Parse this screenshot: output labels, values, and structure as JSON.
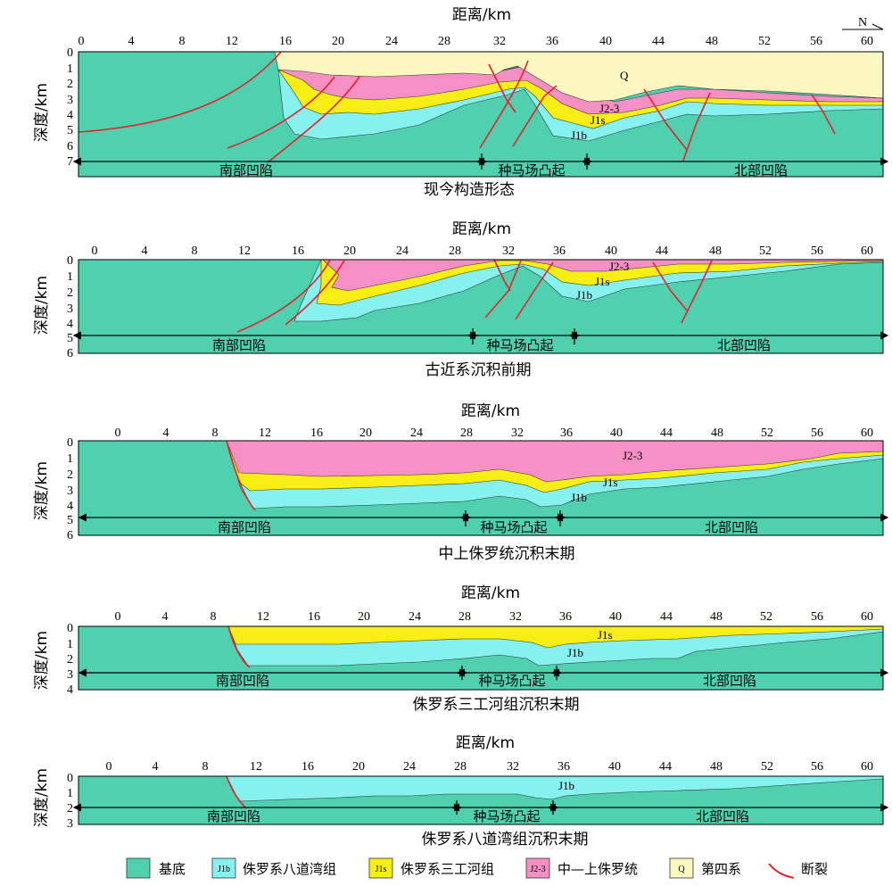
{
  "x_axis_title": "距离/km",
  "y_axis_title": "深度/km",
  "north_label": "N",
  "colors": {
    "basement": "#4fd1b0",
    "j1b": "#86f1ee",
    "j1s": "#f7ef13",
    "j23": "#f590c4",
    "q": "#fbf7c0",
    "fault": "#e8202a"
  },
  "panels": [
    {
      "title": "现今构造形态",
      "x_ticks": [
        "0",
        "4",
        "8",
        "12",
        "16",
        "20",
        "24",
        "28",
        "32",
        "36",
        "40",
        "44",
        "48",
        "52",
        "56",
        "60"
      ],
      "y_ticks": [
        "0",
        "1",
        "2",
        "3",
        "4",
        "5",
        "6",
        "7"
      ],
      "zones": [
        "南部凹陷",
        "种马场凸起",
        "北部凹陷"
      ],
      "unit_labels": [
        "Q",
        "J2-3",
        "J1s",
        "J1b"
      ]
    },
    {
      "title": "古近系沉积前期",
      "x_ticks": [
        "0",
        "4",
        "8",
        "12",
        "16",
        "20",
        "24",
        "28",
        "32",
        "36",
        "40",
        "44",
        "48",
        "52",
        "56",
        "60"
      ],
      "y_ticks": [
        "0",
        "1",
        "2",
        "3",
        "4",
        "5",
        "6"
      ],
      "zones": [
        "南部凹陷",
        "种马场凸起",
        "北部凹陷"
      ],
      "unit_labels": [
        "J2-3",
        "J1s",
        "J1b"
      ]
    },
    {
      "title": "中上侏罗统沉积末期",
      "x_ticks": [
        "0",
        "4",
        "8",
        "12",
        "16",
        "20",
        "24",
        "28",
        "32",
        "36",
        "40",
        "44",
        "48",
        "52",
        "56",
        "60"
      ],
      "y_ticks": [
        "0",
        "1",
        "2",
        "3",
        "4",
        "5",
        "6"
      ],
      "zones": [
        "南部凹陷",
        "种马场凸起",
        "北部凹陷"
      ],
      "unit_labels": [
        "J2-3",
        "J1s",
        "J1b"
      ]
    },
    {
      "title": "侏罗系三工河组沉积末期",
      "x_ticks": [
        "0",
        "4",
        "8",
        "12",
        "16",
        "20",
        "24",
        "28",
        "32",
        "36",
        "40",
        "44",
        "48",
        "52",
        "56",
        "60"
      ],
      "y_ticks": [
        "0",
        "1",
        "2",
        "3",
        "4"
      ],
      "zones": [
        "南部凹陷",
        "种马场凸起",
        "北部凹陷"
      ],
      "unit_labels": [
        "J1s",
        "J1b"
      ]
    },
    {
      "title": "侏罗系八道湾组沉积末期",
      "x_ticks": [
        "0",
        "4",
        "8",
        "12",
        "16",
        "20",
        "24",
        "28",
        "32",
        "36",
        "40",
        "44",
        "48",
        "52",
        "56",
        "60"
      ],
      "y_ticks": [
        "0",
        "1",
        "2",
        "3"
      ],
      "zones": [
        "南部凹陷",
        "种马场凸起",
        "北部凹陷"
      ],
      "unit_labels": [
        "J1b"
      ]
    }
  ],
  "legend": [
    {
      "key": "basement",
      "swatch": "",
      "label": "基底"
    },
    {
      "key": "j1b",
      "swatch": "J1b",
      "label": "侏罗系八道湾组"
    },
    {
      "key": "j1s",
      "swatch": "J1s",
      "label": "侏罗系三工河组"
    },
    {
      "key": "j23",
      "swatch": "J2-3",
      "label": "中—上侏罗统"
    },
    {
      "key": "q",
      "swatch": "Q",
      "label": "第四系"
    },
    {
      "key": "fault",
      "swatch": "",
      "label": "断裂"
    }
  ]
}
